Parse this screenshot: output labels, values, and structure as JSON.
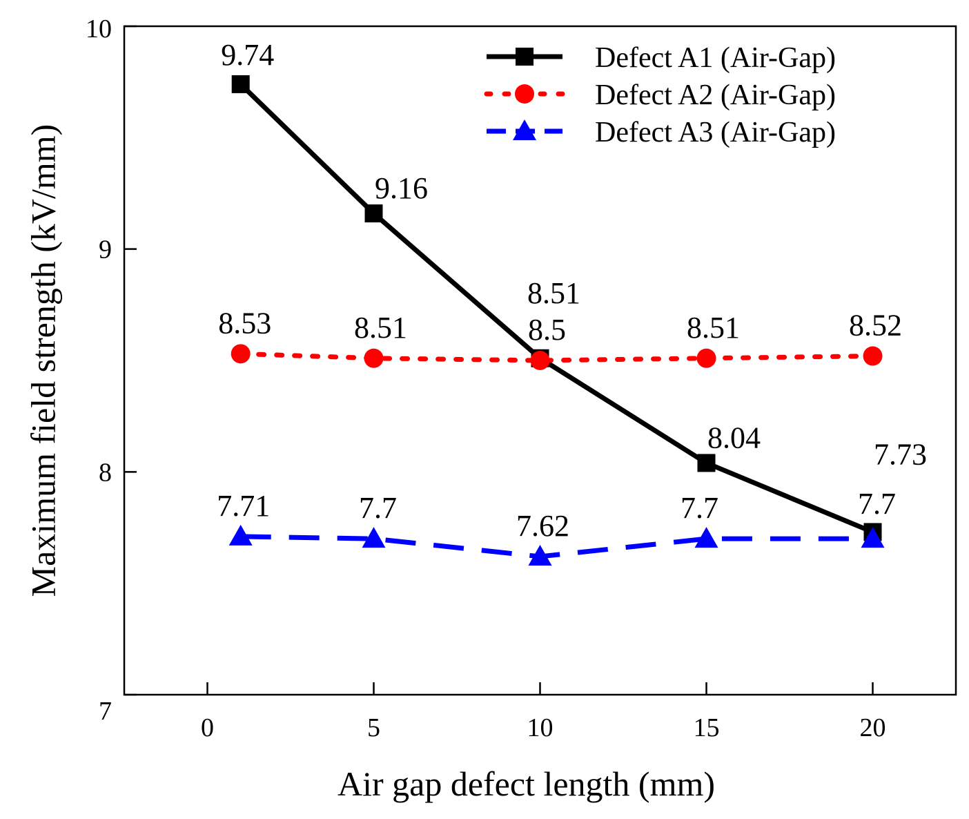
{
  "chart_data": {
    "type": "line",
    "title": "",
    "xlabel": "Air gap defect length (mm)",
    "ylabel": "Maximum field strength (kV/mm)",
    "xlim": [
      -2.5,
      22.5
    ],
    "ylim": [
      7,
      10
    ],
    "xticks": [
      0,
      5,
      10,
      15,
      20
    ],
    "yticks": [
      7,
      8,
      9,
      10
    ],
    "legend_position": "top-right",
    "series": [
      {
        "name": "Defect A1 (Air-Gap)",
        "color": "#000000",
        "line_style": "solid",
        "marker": "square",
        "x": [
          1,
          5,
          10,
          15,
          20
        ],
        "y": [
          9.74,
          9.16,
          8.51,
          8.04,
          7.73
        ],
        "labels": [
          "9.74",
          "9.16",
          "8.51",
          "8.04",
          "7.73"
        ]
      },
      {
        "name": "Defect A2 (Air-Gap)",
        "color": "#ff0000",
        "line_style": "dotted",
        "marker": "circle",
        "x": [
          1,
          5,
          10,
          15,
          20
        ],
        "y": [
          8.53,
          8.51,
          8.5,
          8.51,
          8.52
        ],
        "labels": [
          "8.53",
          "8.51",
          "8.5",
          "8.51",
          "8.52"
        ]
      },
      {
        "name": "Defect A3 (Air-Gap)",
        "color": "#0000ff",
        "line_style": "dashed",
        "marker": "triangle",
        "x": [
          1,
          5,
          10,
          15,
          20
        ],
        "y": [
          7.71,
          7.7,
          7.62,
          7.7,
          7.7
        ],
        "labels": [
          "7.71",
          "7.7",
          "7.62",
          "7.7",
          "7.7"
        ]
      }
    ]
  }
}
